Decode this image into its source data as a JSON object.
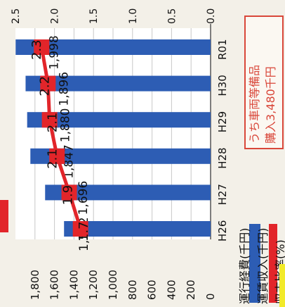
{
  "chart_data": {
    "type": "bar",
    "orientation": "horizontal, rotated view",
    "categories": [
      "H26",
      "H27",
      "H28",
      "H29",
      "H30",
      "R01"
    ],
    "series": [
      {
        "name": "運行経費(千円)",
        "kind": "bar",
        "color": "#2d5db4",
        "values": [
          1502,
          1696,
          1847,
          1880,
          1896,
          1998
        ]
      },
      {
        "name": "運賃収入(千円)",
        "kind": "line",
        "color": "#e2252a",
        "values": [
          1333,
          1449,
          1574,
          1650,
          1667,
          1732
        ]
      },
      {
        "name": "収支比率(%)",
        "kind": "line",
        "color": "#f2ea2a",
        "values": [
          1.7,
          1.9,
          2.1,
          2.1,
          2.2,
          2.3
        ]
      }
    ],
    "left_axis": {
      "ticks": [
        "0",
        "200",
        "400",
        "600",
        "800",
        "1,000",
        "1,200",
        "1,400",
        "1,600",
        "1,800"
      ],
      "range": [
        0,
        2000
      ]
    },
    "right_axis": {
      "ticks": [
        "0.0",
        "0.5",
        "1.0",
        "1.5",
        "2.0",
        "2.5"
      ],
      "range": [
        0,
        2.5
      ]
    },
    "bar_labels": [
      "1,502",
      "1,696",
      "1,847",
      "1,880",
      "1,896",
      "1,998"
    ],
    "ratio_labels": [
      "1.7",
      "1.9",
      "2.1",
      "2.1",
      "2.2",
      "2.3"
    ],
    "grid": true
  },
  "annotation": {
    "line1": "うち車両等備品",
    "line2": "購入3,480千円"
  },
  "legend": {
    "bar_label": "運行経費(千円)",
    "line_label": "運賃収入(千円)",
    "ratio_label": "収支比率(%)"
  },
  "colors": {
    "bar": "#2d5db4",
    "line": "#e2252a",
    "accent": "#d9473a",
    "ratio": "#f2ea2a"
  }
}
